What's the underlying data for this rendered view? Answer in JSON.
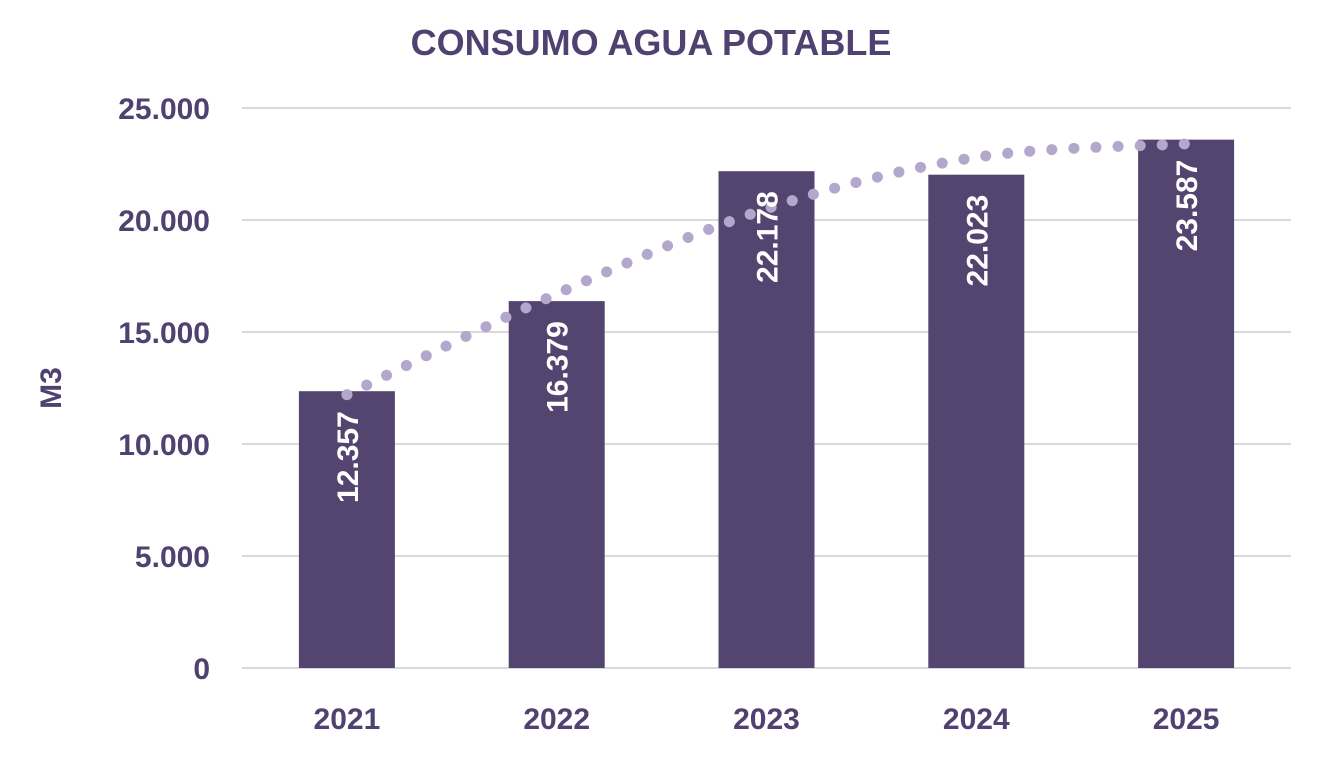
{
  "chart_data": {
    "type": "bar",
    "title": "CONSUMO AGUA POTABLE",
    "xlabel": "",
    "ylabel": "M3",
    "categories": [
      "2021",
      "2022",
      "2023",
      "2024",
      "2025"
    ],
    "values": [
      12357,
      16379,
      22178,
      22023,
      23587
    ],
    "data_labels": [
      "12.357",
      "16.379",
      "22.178",
      "22.023",
      "23.587"
    ],
    "ylim": [
      0,
      25000
    ],
    "y_ticks": [
      0,
      5000,
      10000,
      15000,
      20000,
      25000
    ],
    "y_tick_labels": [
      "0",
      "5.000",
      "10.000",
      "15.000",
      "20.000",
      "25.000"
    ],
    "grid": true,
    "legend": "none",
    "trendline": {
      "type": "polynomial",
      "style": "dotted",
      "values": [
        12200,
        16700,
        20500,
        22800,
        23400
      ]
    },
    "colors": {
      "bar": "#534570",
      "text": "#4f4270",
      "grid": "#d9d9d9",
      "trendline": "#b3a8cc",
      "data_label": "#ffffff"
    }
  }
}
